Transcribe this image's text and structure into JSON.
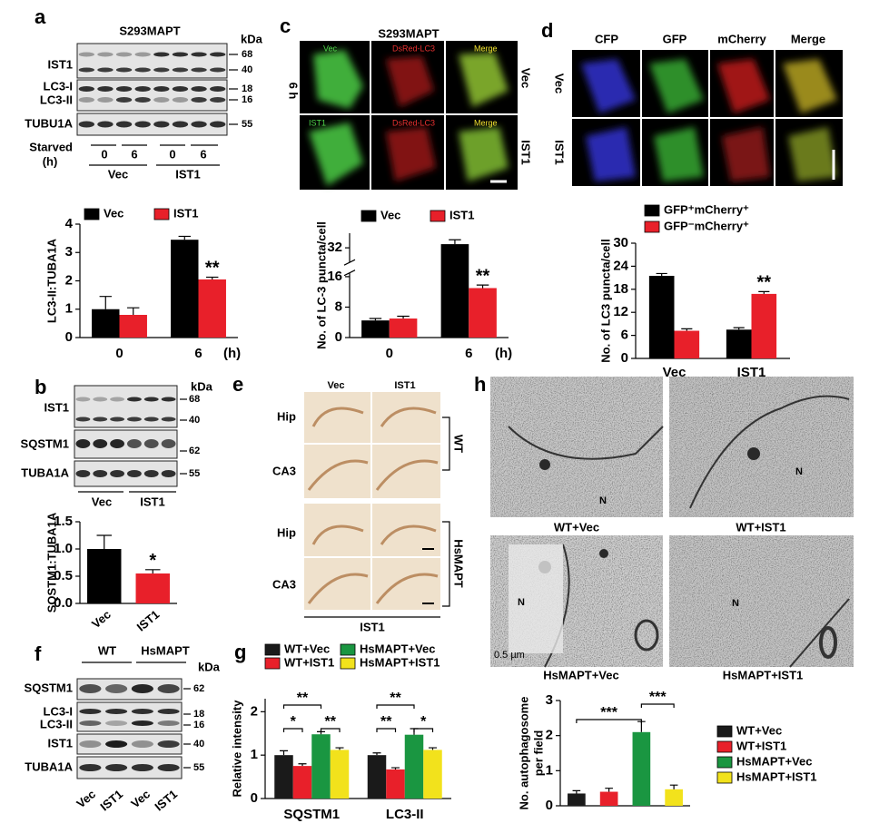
{
  "figure": {
    "panel_labels": [
      "a",
      "b",
      "c",
      "d",
      "e",
      "f",
      "g",
      "h"
    ],
    "a": {
      "title": "S293MAPT",
      "kda": "kDa",
      "rows": [
        "IST1",
        "LC3-I",
        "LC3-II",
        "TUBU1A"
      ],
      "markers": [
        "68",
        "40",
        "18",
        "16",
        "55"
      ],
      "starved": "Starved",
      "unit": "(h)",
      "times": [
        "0",
        "6",
        "0",
        "6"
      ],
      "groups": [
        "Vec",
        "IST1"
      ]
    },
    "b": {
      "kda": "kDa",
      "rows": [
        "IST1",
        "SQSTM1",
        "TUBA1A"
      ],
      "markers": [
        "68",
        "40",
        "62",
        "55"
      ],
      "groups": [
        "Vec",
        "IST1"
      ]
    },
    "c": {
      "title": "S293MAPT",
      "time": "6 h",
      "rows": [
        "Vec",
        "IST1"
      ],
      "tags": [
        [
          "Vec",
          "DsRed-LC3",
          "Merge"
        ],
        [
          "IST1",
          "DsRed-LC3",
          "Merge"
        ]
      ]
    },
    "d": {
      "columns": [
        "CFP",
        "GFP",
        "mCherry",
        "Merge"
      ],
      "rows": [
        "Vec",
        "IST1"
      ]
    },
    "e": {
      "columns": [
        "Vec",
        "IST1"
      ],
      "rows": [
        "Hip",
        "CA3",
        "Hip",
        "CA3"
      ],
      "groups": [
        "WT",
        "HsMAPT"
      ],
      "bottom": "IST1"
    },
    "f": {
      "groups": [
        "WT",
        "HsMAPT"
      ],
      "kda": "kDa",
      "rows": [
        "SQSTM1",
        "LC3-I",
        "LC3-II",
        "IST1",
        "TUBA1A"
      ],
      "markers": [
        "62",
        "18",
        "16",
        "40",
        "55"
      ],
      "lanes": [
        "Vec",
        "IST1",
        "Vec",
        "IST1"
      ]
    },
    "h": {
      "captions": [
        "WT+Vec",
        "WT+IST1",
        "HsMAPT+Vec",
        "HsMAPT+IST1"
      ],
      "nucleus": [
        "N",
        "N",
        "N",
        "N"
      ],
      "scale": "0.5 µm"
    }
  },
  "chart_data": [
    {
      "type": "bar",
      "ylabel": "LC3-II:TUBA1A",
      "xlabel": "(h)",
      "categories": [
        "0",
        "6"
      ],
      "series": [
        {
          "name": "Vec",
          "color": "#000000",
          "values": [
            1.0,
            3.45
          ],
          "errors": [
            0.45,
            0.12
          ]
        },
        {
          "name": "IST1",
          "color": "#e8202a",
          "values": [
            0.8,
            2.05
          ],
          "errors": [
            0.25,
            0.08
          ]
        }
      ],
      "ylim": [
        0,
        4
      ],
      "yticks": [
        0,
        1,
        2,
        3,
        4
      ],
      "annotations": [
        "**"
      ]
    },
    {
      "type": "bar",
      "ylabel": "No. of LC-3 puncta/cell",
      "xlabel": "(h)",
      "categories": [
        "0",
        "6"
      ],
      "series": [
        {
          "name": "Vec",
          "color": "#000000",
          "values": [
            4.5,
            33
          ],
          "errors": [
            0.5,
            1.2
          ]
        },
        {
          "name": "IST1",
          "color": "#e8202a",
          "values": [
            5,
            13
          ],
          "errors": [
            0.6,
            0.8
          ]
        }
      ],
      "ylim": [
        0,
        36
      ],
      "ybreak": [
        17,
        28
      ],
      "yticks": [
        0,
        8,
        16,
        32
      ],
      "annotations": [
        "**"
      ]
    },
    {
      "type": "bar",
      "ylabel": "No. of LC3 puncta/cell",
      "categories": [
        "Vec",
        "IST1"
      ],
      "series": [
        {
          "name": "GFP⁺mCherry⁺",
          "color": "#000000",
          "values": [
            21.5,
            7.5
          ],
          "errors": [
            0.6,
            0.5
          ]
        },
        {
          "name": "GFP⁻mCherry⁺",
          "color": "#e8202a",
          "values": [
            7.2,
            16.8
          ],
          "errors": [
            0.5,
            0.6
          ]
        }
      ],
      "ylim": [
        0,
        30
      ],
      "yticks": [
        0,
        6,
        12,
        18,
        24,
        30
      ],
      "annotations": [
        "**"
      ]
    },
    {
      "type": "bar",
      "ylabel": "SQSTM1:TUBA1A",
      "categories": [
        "Vec",
        "IST1"
      ],
      "colors": [
        "#000000",
        "#e8202a"
      ],
      "values": [
        1.0,
        0.55
      ],
      "errors": [
        0.25,
        0.07
      ],
      "ylim": [
        0,
        1.5
      ],
      "yticks": [
        {
          "value": 0,
          "label": "0.0"
        },
        {
          "value": 0.5,
          "label": "0.5"
        },
        {
          "value": 1,
          "label": "1.0"
        },
        {
          "value": 1.5,
          "label": "1.5"
        }
      ],
      "annotations": [
        "*"
      ]
    },
    {
      "type": "bar",
      "ylabel": "Relative intensity",
      "categories": [
        "SQSTM1",
        "LC3-II"
      ],
      "series": [
        {
          "name": "WT+Vec",
          "color": "#1a1a1a",
          "values": [
            1.0,
            1.0
          ],
          "errors": [
            0.1,
            0.05
          ]
        },
        {
          "name": "WT+IST1",
          "color": "#e8202a",
          "values": [
            0.75,
            0.67
          ],
          "errors": [
            0.05,
            0.04
          ]
        },
        {
          "name": "HsMAPT+Vec",
          "color": "#1a9641",
          "values": [
            1.48,
            1.47
          ],
          "errors": [
            0.06,
            0.14
          ]
        },
        {
          "name": "HsMAPT+IST1",
          "color": "#f2e21c",
          "values": [
            1.12,
            1.12
          ],
          "errors": [
            0.05,
            0.05
          ]
        }
      ],
      "ylim": [
        0,
        2.3
      ],
      "yticks": [
        0,
        1,
        2
      ],
      "annotations": [
        "**",
        "*",
        "**",
        "**",
        "**",
        "*"
      ]
    },
    {
      "type": "bar",
      "ylabel": [
        "No. autophagosome",
        "per field"
      ],
      "categories": [
        "WT+Vec",
        "WT+IST1",
        "HsMAPT+Vec",
        "HsMAPT+IST1"
      ],
      "colors": [
        "#1a1a1a",
        "#e8202a",
        "#1a9641",
        "#f2e21c"
      ],
      "values": [
        0.35,
        0.4,
        2.1,
        0.47
      ],
      "errors": [
        0.08,
        0.1,
        0.3,
        0.12
      ],
      "ylim": [
        0,
        3
      ],
      "yticks": [
        0,
        1,
        2,
        3
      ],
      "annotations": [
        "***",
        "***"
      ]
    }
  ]
}
